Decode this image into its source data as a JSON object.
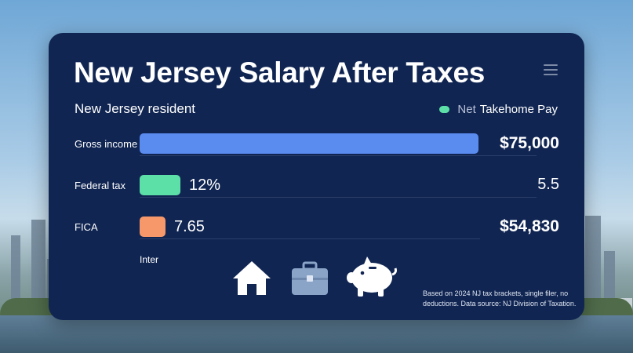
{
  "card": {
    "title": "New Jersey Salary After Taxes",
    "subtitle": "New Jersey resident",
    "legend": {
      "prefix": "Net",
      "label": "Takehome Pay",
      "color": "#5ddfa8"
    },
    "axis_label": "Inter",
    "note": "Based on 2024 NJ tax brackets, single filer, no deductions. Data source: NJ Division of Taxation.",
    "icons": [
      "house-icon",
      "briefcase-icon",
      "piggy-bank-icon"
    ]
  },
  "chart_data": {
    "type": "bar",
    "orientation": "horizontal",
    "categories": [
      "Gross income",
      "Federal tax",
      "FICA"
    ],
    "values": [
      75000,
      9000,
      5737.5
    ],
    "bar_labels": [
      "",
      "12%",
      "7.65"
    ],
    "side_values": [
      "$75,000",
      "5.5",
      "$54,830"
    ],
    "colors": [
      "#5a8cf0",
      "#5ddfa8",
      "#f7986a"
    ],
    "xlim": [
      0,
      75000
    ]
  }
}
